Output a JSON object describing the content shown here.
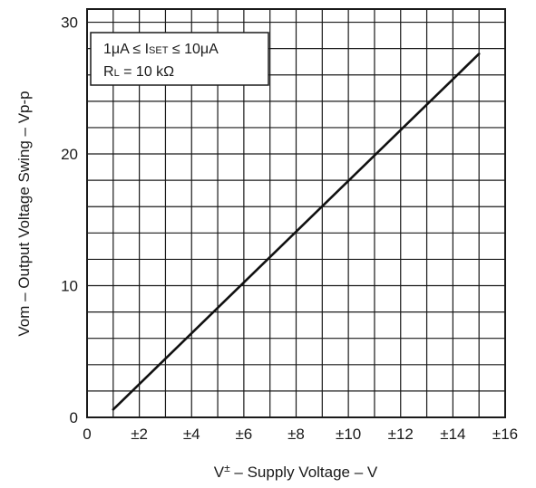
{
  "chart_data": {
    "type": "line",
    "title": "",
    "xlabel": "V± – Supply Voltage – V",
    "xlabel_parts": {
      "prefix": "V",
      "sup": "±",
      "rest": " – Supply Voltage – V"
    },
    "ylabel": "Vom – Output Voltage Swing – Vp-p",
    "xlim": [
      0,
      16
    ],
    "ylim": [
      0,
      31
    ],
    "grid": true,
    "x_ticks": [
      0,
      2,
      4,
      6,
      8,
      10,
      12,
      14,
      16
    ],
    "x_tick_labels": [
      "0",
      "±2",
      "±4",
      "±6",
      "±8",
      "±10",
      "±12",
      "±14",
      "±16"
    ],
    "y_ticks": [
      0,
      10,
      20,
      30
    ],
    "y_tick_labels": [
      "0",
      "10",
      "20",
      "30"
    ],
    "legend": {
      "placement": "top-left",
      "line1": {
        "a": "1μA ≤ I",
        "sub": "SET",
        "b": " ≤ 10μA"
      },
      "line2": {
        "a": "R",
        "sub": "L",
        "b": " = 10 kΩ"
      }
    },
    "series": [
      {
        "x": [
          1,
          15
        ],
        "y": [
          0.6,
          27.6
        ]
      }
    ]
  },
  "colors": {
    "line": "#111111",
    "grid": "#1a1a1a",
    "text": "#1a1a1a"
  }
}
